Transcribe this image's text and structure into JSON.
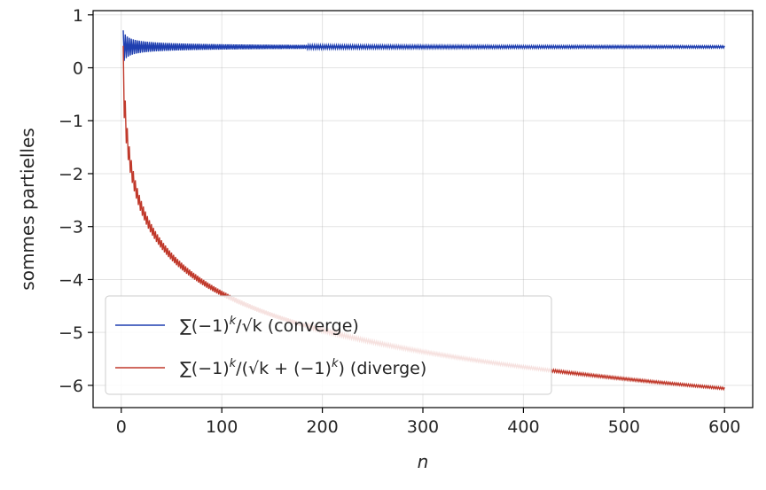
{
  "chart_data": {
    "type": "line",
    "title": "",
    "xlabel": "n",
    "ylabel": "sommes partielles",
    "xlim": [
      -28,
      628
    ],
    "ylim": [
      -6.42,
      1.08
    ],
    "xticks": [
      0,
      100,
      200,
      300,
      400,
      500,
      600
    ],
    "yticks": [
      1,
      0,
      -1,
      -2,
      -3,
      -4,
      -5,
      -6
    ],
    "xtick_labels": [
      "0",
      "100",
      "200",
      "300",
      "400",
      "500",
      "600"
    ],
    "ytick_labels": [
      "1",
      "0",
      "−1",
      "−2",
      "−3",
      "−4",
      "−5",
      "−6"
    ],
    "grid": true,
    "legend_position": "lower-left",
    "n_max": 600,
    "series": [
      {
        "name": "∑(−1)k/√k (converge)",
        "legend_main": "∑(−1)",
        "legend_sup": "k",
        "legend_mid": "/√k",
        "legend_tail": " (converge)",
        "color": "#1f3fb0",
        "formula": "(-1)^k/sqrt(k)",
        "limit": 0.39
      },
      {
        "name": "∑(−1)k/(√k+(−1)k) (diverge)",
        "legend_main": "∑(−1)",
        "legend_sup": "k",
        "legend_mid": "/(√k + (−1)",
        "legend_sup2": "k",
        "legend_tail": ") (diverge)",
        "color": "#c0392b",
        "formula": "(-1)^k/(sqrt(k)+(-1)^k)",
        "endpoint": -6.06
      }
    ]
  }
}
